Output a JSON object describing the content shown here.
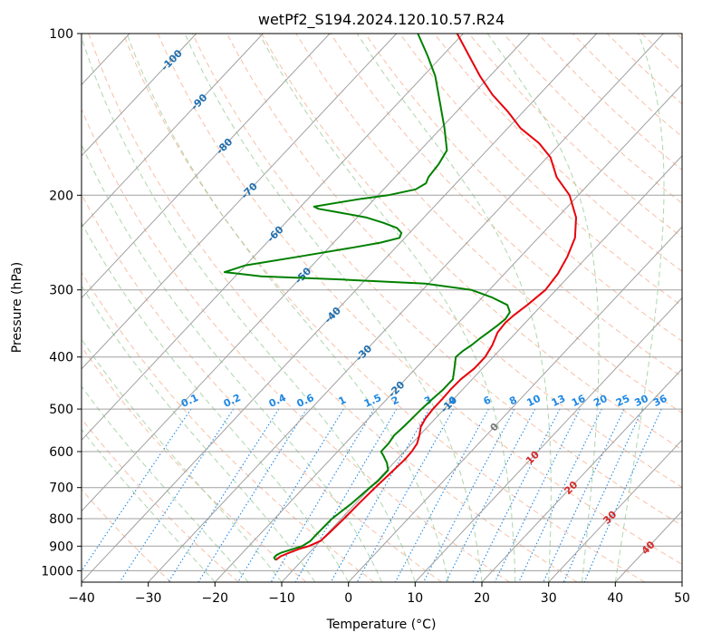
{
  "chart_data": {
    "type": "line",
    "title": "wetPf2_S194.2024.120.10.57.R24",
    "xlabel": "Temperature (°C)",
    "ylabel": "Pressure (hPa)",
    "xlim": [
      -40,
      50
    ],
    "ylim": [
      1050,
      100
    ],
    "y_scale": "log",
    "grid": true,
    "x_ticks": [
      -40,
      -30,
      -20,
      -10,
      0,
      10,
      20,
      30,
      40,
      50
    ],
    "y_ticks": [
      100,
      200,
      300,
      400,
      500,
      600,
      700,
      800,
      900,
      1000
    ],
    "colors": {
      "temperature": "#e8000b",
      "dewpoint": "#008000",
      "isotherm": "#a0a0a0",
      "dry_adiabat": "#f4a582",
      "moist_adiabat": "#99cc99",
      "mixing_ratio": "#1e88e5",
      "isotherm_label": "#1f6fb0",
      "isotherm_label_warm": "#d62728"
    },
    "series": [
      {
        "key": "temperature",
        "p": [
          955,
          940,
          925,
          910,
          900,
          880,
          850,
          800,
          750,
          700,
          650,
          620,
          600,
          580,
          560,
          540,
          520,
          500,
          480,
          460,
          440,
          420,
          400,
          380,
          360,
          345,
          335,
          320,
          300,
          280,
          260,
          240,
          220,
          200,
          185,
          170,
          160,
          150,
          140,
          130,
          120,
          110,
          100
        ],
        "t": [
          -14,
          -13.8,
          -13,
          -12,
          -11,
          -10,
          -9.8,
          -9.6,
          -9.5,
          -9.3,
          -9,
          -8.8,
          -8.9,
          -9.2,
          -10,
          -11,
          -11.5,
          -11.7,
          -11.7,
          -11.8,
          -11.7,
          -11.2,
          -11.2,
          -11.8,
          -12.8,
          -13,
          -12.8,
          -12.2,
          -11.6,
          -12,
          -13,
          -14.5,
          -17.2,
          -21.3,
          -25.8,
          -29.5,
          -33.2,
          -38.1,
          -42.2,
          -47,
          -51.5,
          -56,
          -60.9
        ]
      },
      {
        "key": "dewpoint",
        "p": [
          955,
          945,
          935,
          925,
          900,
          880,
          860,
          800,
          750,
          700,
          680,
          650,
          630,
          610,
          600,
          580,
          560,
          540,
          520,
          500,
          480,
          460,
          440,
          420,
          400,
          390,
          380,
          370,
          360,
          350,
          340,
          330,
          320,
          310,
          300,
          292,
          287,
          283,
          278,
          270,
          260,
          250,
          245,
          240,
          235,
          230,
          225,
          220,
          215,
          212,
          210,
          207,
          203,
          200,
          195,
          190,
          185,
          175,
          165,
          150,
          135,
          120,
          110,
          100
        ],
        "t": [
          -14,
          -14.6,
          -14.6,
          -14.2,
          -12,
          -11.5,
          -11.5,
          -11.4,
          -10.6,
          -10.1,
          -9.8,
          -9.8,
          -11,
          -12.6,
          -13.5,
          -13.5,
          -13.8,
          -13.6,
          -13.5,
          -13.4,
          -13.2,
          -12.9,
          -12.9,
          -14.2,
          -15.6,
          -15.4,
          -14.9,
          -14.6,
          -14.2,
          -13.8,
          -13.5,
          -13.8,
          -15.2,
          -18.5,
          -22.7,
          -30.5,
          -43.5,
          -56.1,
          -62.2,
          -60,
          -53.1,
          -46.3,
          -43,
          -40.8,
          -41.2,
          -42.6,
          -45.4,
          -48.6,
          -53.7,
          -57,
          -58,
          -55.5,
          -52,
          -48.5,
          -45.2,
          -44.5,
          -45,
          -45.3,
          -46,
          -49.5,
          -53.6,
          -58.2,
          -62.2,
          -66.8
        ]
      }
    ],
    "isotherm_labels": [
      "-100",
      "-90",
      "-80",
      "-70",
      "-60",
      "-50",
      "-40",
      "-30",
      "-20",
      "-10",
      "0",
      "10",
      "20",
      "30",
      "40"
    ],
    "mixing_ratio_labels": [
      "0.1",
      "0.2",
      "0.4",
      "0.6",
      "1",
      "1.5",
      "2",
      "3",
      "4",
      "6",
      "8",
      "10",
      "13",
      "16",
      "20",
      "25",
      "30",
      "36"
    ]
  }
}
